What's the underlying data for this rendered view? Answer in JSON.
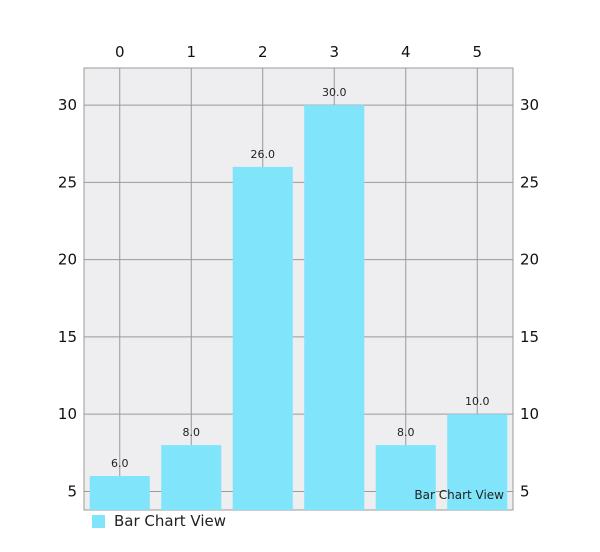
{
  "chart_data": {
    "type": "bar",
    "title": "",
    "description": "Bar Chart View",
    "xlabel": "",
    "ylabel": "",
    "categories": [
      "0",
      "1",
      "2",
      "3",
      "4",
      "5"
    ],
    "series": [
      {
        "name": "Bar Chart View",
        "values": [
          6,
          8,
          26,
          30,
          8,
          10
        ],
        "data_labels": [
          "6.0",
          "8.0",
          "26.0",
          "30.0",
          "8.0",
          "10.0"
        ],
        "color": "#80E5FB"
      }
    ],
    "y_ticks": [
      5,
      10,
      15,
      20,
      25,
      30
    ],
    "ylim": [
      3.8,
      32.4
    ],
    "x_axis_position": "top",
    "y_axis_position": "both",
    "grid": true,
    "legend_position": "bottom-left",
    "colors": {
      "plot_background": "#EEEDEF",
      "grid": "#9A9A9A",
      "bar": "#80E5FB"
    }
  }
}
